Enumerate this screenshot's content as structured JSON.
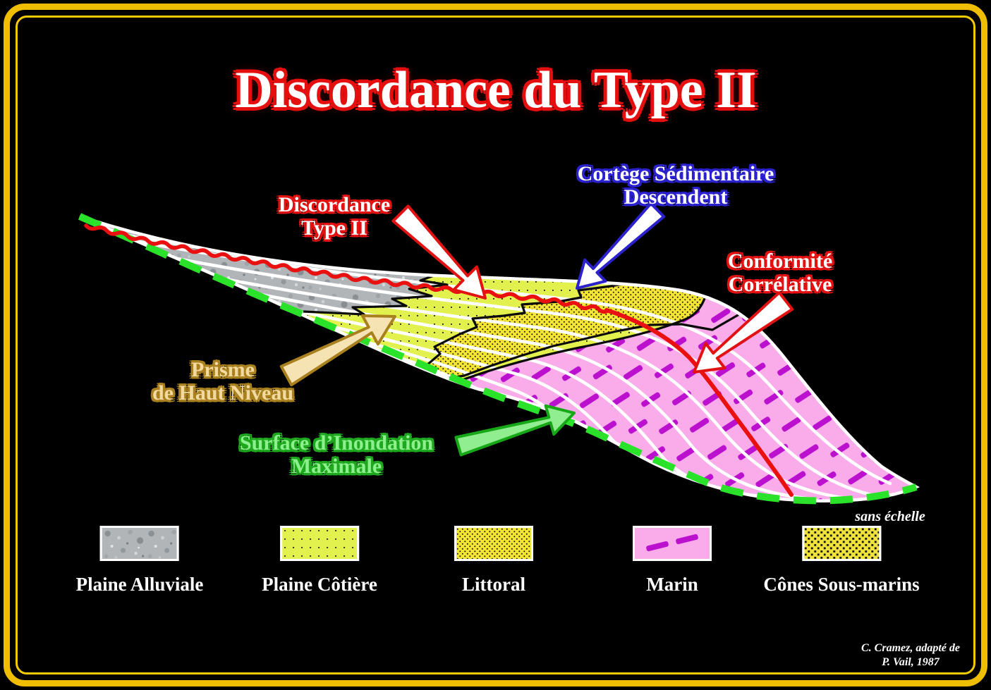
{
  "title": "Discordance du Type II",
  "annotations": {
    "cortege_line1": "Cortège Sédimentaire",
    "cortege_line2": "Descendent",
    "discordance_line1": "Discordance",
    "discordance_line2": "Type II",
    "conformite_line1": "Conformité",
    "conformite_line2": "Corrélative",
    "prisme_line1": "Prisme",
    "prisme_line2": "de Haut Niveau",
    "surface_line1": "Surface d’Inondation",
    "surface_line2": "Maximale"
  },
  "scale_note": "sans échelle",
  "credit_line1": "C. Cramez, adapté de",
  "credit_line2": "P. Vail, 1987",
  "legend": [
    {
      "label": "Plaine Alluviale",
      "swatch": "alluvial-pattern"
    },
    {
      "label": "Plaine Côtière",
      "swatch": "coastal-dots-pattern"
    },
    {
      "label": "Littoral",
      "swatch": "littoral-dots-pattern"
    },
    {
      "label": "Marin",
      "swatch": "marine-dashes-pattern"
    },
    {
      "label": "Cônes Sous-marins",
      "swatch": "cones-speckle-pattern"
    }
  ],
  "colors": {
    "frame_gold": "#EFBE00",
    "title_outline": "#E50F0F",
    "cortege_outline": "#2B22CE",
    "red_line": "#EA1010",
    "green_dashed_line": "#2BE22B",
    "prisme_text": "#F2D9A0",
    "prisme_outline": "#A8801E",
    "surface_text": "#8CF08C",
    "surface_outline": "#1FA81F",
    "coastal_fill": "#E3F14F",
    "littoral_fill": "#F4E433",
    "marine_fill": "#F9ACE9",
    "marine_dash": "#BC10CF",
    "alluvial_fill": "#B1B5B8"
  }
}
